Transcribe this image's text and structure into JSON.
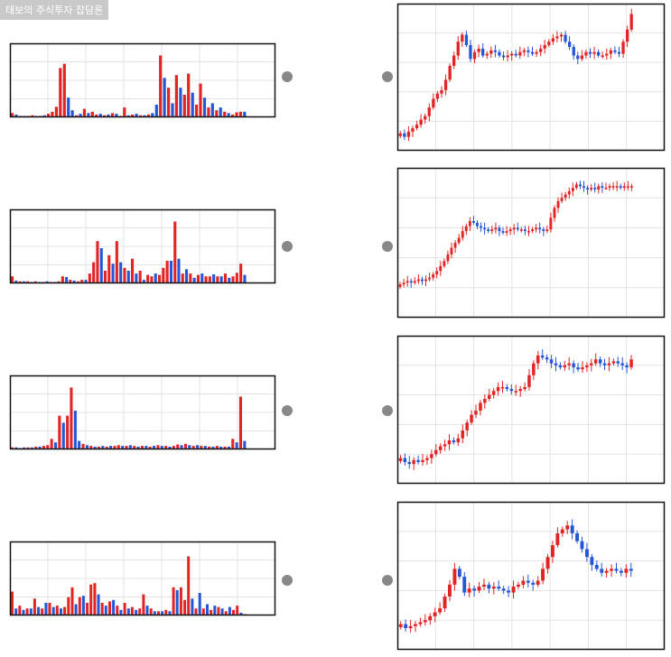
{
  "watermark_text": "태보의 주식투자 잡담론",
  "colors": {
    "up": "#e32424",
    "down": "#2456d6",
    "grid": "#e3e3e3",
    "frame": "#111111",
    "dot": "#888888"
  },
  "chart_data": [
    {
      "type": "bar",
      "label": "volume-1",
      "values": [
        6,
        4,
        2,
        2,
        2,
        3,
        2,
        2,
        3,
        5,
        8,
        15,
        70,
        76,
        28,
        10,
        3,
        5,
        12,
        6,
        8,
        4,
        5,
        3,
        4,
        6,
        5,
        2,
        14,
        3,
        4,
        5,
        3,
        3,
        4,
        6,
        18,
        88,
        56,
        42,
        20,
        60,
        42,
        32,
        62,
        35,
        18,
        48,
        28,
        14,
        20,
        10,
        14,
        8,
        6,
        4,
        7,
        8,
        8
      ],
      "ups": [
        1,
        0,
        1,
        0,
        1,
        1,
        0,
        1,
        0,
        1,
        1,
        1,
        1,
        1,
        0,
        0,
        1,
        0,
        1,
        0,
        1,
        1,
        0,
        1,
        0,
        1,
        0,
        1,
        1,
        0,
        1,
        0,
        1,
        0,
        1,
        0,
        0,
        1,
        0,
        1,
        0,
        1,
        0,
        1,
        1,
        0,
        1,
        1,
        0,
        1,
        0,
        1,
        0,
        1,
        0,
        1,
        1,
        1,
        0
      ],
      "ymax": 100
    },
    {
      "type": "bar",
      "label": "volume-2",
      "values": [
        10,
        4,
        3,
        3,
        3,
        2,
        3,
        2,
        2,
        3,
        2,
        2,
        3,
        10,
        9,
        5,
        4,
        3,
        5,
        5,
        14,
        30,
        60,
        50,
        18,
        40,
        28,
        60,
        30,
        22,
        18,
        35,
        14,
        18,
        5,
        12,
        10,
        14,
        12,
        22,
        32,
        32,
        88,
        35,
        14,
        20,
        14,
        8,
        12,
        14,
        10,
        10,
        13,
        10,
        10,
        14,
        8,
        10,
        15,
        28,
        12
      ],
      "ups": [
        1,
        0,
        1,
        0,
        1,
        0,
        1,
        0,
        1,
        0,
        1,
        0,
        1,
        1,
        0,
        1,
        0,
        1,
        1,
        0,
        1,
        1,
        1,
        0,
        1,
        1,
        0,
        1,
        0,
        1,
        0,
        1,
        0,
        1,
        0,
        1,
        1,
        0,
        1,
        1,
        1,
        0,
        1,
        0,
        1,
        0,
        1,
        0,
        1,
        0,
        1,
        1,
        0,
        1,
        0,
        1,
        0,
        1,
        1,
        1,
        0
      ],
      "ymax": 100
    },
    {
      "type": "bar",
      "label": "volume-3",
      "values": [
        3,
        3,
        2,
        3,
        3,
        3,
        4,
        4,
        5,
        6,
        15,
        10,
        48,
        38,
        48,
        88,
        55,
        12,
        8,
        6,
        5,
        4,
        4,
        5,
        4,
        5,
        5,
        6,
        5,
        5,
        6,
        5,
        4,
        5,
        5,
        4,
        5,
        6,
        5,
        5,
        4,
        5,
        7,
        6,
        8,
        6,
        5,
        6,
        5,
        5,
        4,
        4,
        5,
        4,
        4,
        4,
        15,
        10,
        75,
        12
      ],
      "ups": [
        1,
        0,
        1,
        0,
        1,
        0,
        1,
        0,
        1,
        1,
        1,
        0,
        1,
        0,
        1,
        1,
        0,
        0,
        1,
        0,
        1,
        0,
        1,
        0,
        1,
        0,
        1,
        1,
        0,
        1,
        0,
        1,
        0,
        1,
        0,
        1,
        0,
        1,
        0,
        1,
        0,
        1,
        1,
        0,
        1,
        0,
        1,
        0,
        1,
        0,
        1,
        0,
        1,
        0,
        1,
        0,
        1,
        0,
        1,
        0
      ],
      "ymax": 100
    },
    {
      "type": "bar",
      "label": "volume-4",
      "values": [
        34,
        10,
        14,
        8,
        10,
        10,
        24,
        12,
        10,
        18,
        18,
        12,
        14,
        10,
        12,
        26,
        40,
        16,
        26,
        28,
        18,
        44,
        46,
        30,
        18,
        14,
        20,
        22,
        14,
        8,
        18,
        10,
        12,
        8,
        10,
        30,
        14,
        10,
        6,
        6,
        6,
        8,
        6,
        40,
        36,
        40,
        22,
        84,
        24,
        10,
        32,
        10,
        16,
        8,
        14,
        12,
        10,
        6,
        12,
        8,
        14,
        4,
        2
      ],
      "ups": [
        1,
        0,
        1,
        0,
        1,
        0,
        1,
        0,
        1,
        0,
        1,
        0,
        1,
        0,
        1,
        1,
        1,
        0,
        1,
        0,
        1,
        1,
        1,
        0,
        1,
        0,
        1,
        0,
        1,
        0,
        1,
        0,
        1,
        0,
        1,
        1,
        0,
        1,
        0,
        1,
        0,
        1,
        0,
        1,
        0,
        1,
        1,
        1,
        0,
        1,
        0,
        1,
        0,
        1,
        0,
        1,
        0,
        1,
        0,
        1,
        1,
        0,
        1
      ],
      "ymax": 100
    },
    {
      "type": "candlestick",
      "label": "price-1",
      "closes": [
        35,
        33,
        36,
        38,
        40,
        43,
        45,
        50,
        55,
        58,
        60,
        66,
        74,
        80,
        88,
        92,
        86,
        78,
        82,
        84,
        80,
        81,
        83,
        82,
        80,
        79,
        80,
        81,
        80,
        82,
        83,
        82,
        81,
        82,
        84,
        86,
        88,
        90,
        91,
        92,
        88,
        85,
        80,
        78,
        80,
        82,
        81,
        82,
        80,
        80,
        81,
        83,
        82,
        81,
        88,
        95,
        104
      ],
      "ymin": 25,
      "ymax": 110
    },
    {
      "type": "candlestick",
      "label": "price-2",
      "closes": [
        30,
        31,
        32,
        31,
        32,
        33,
        32,
        33,
        34,
        36,
        38,
        41,
        44,
        48,
        52,
        55,
        58,
        62,
        65,
        68,
        67,
        65,
        64,
        63,
        62,
        63,
        64,
        62,
        61,
        62,
        63,
        64,
        63,
        63,
        62,
        62,
        63,
        64,
        63,
        62,
        63,
        70,
        76,
        80,
        82,
        84,
        86,
        88,
        90,
        89,
        88,
        87,
        88,
        87,
        89,
        88,
        88,
        89,
        89,
        89,
        88,
        89,
        89,
        89
      ],
      "ymin": 10,
      "ymax": 100
    },
    {
      "type": "candlestick",
      "label": "price-3",
      "closes": [
        38,
        36,
        35,
        37,
        36,
        37,
        38,
        40,
        42,
        44,
        45,
        47,
        46,
        48,
        52,
        56,
        60,
        62,
        66,
        68,
        70,
        72,
        74,
        74,
        73,
        72,
        72,
        73,
        74,
        80,
        86,
        90,
        89,
        88,
        86,
        85,
        84,
        85,
        86,
        84,
        83,
        84,
        85,
        86,
        88,
        86,
        85,
        86,
        87,
        86,
        85,
        84,
        88
      ],
      "ymin": 25,
      "ymax": 100
    },
    {
      "type": "candlestick",
      "label": "price-4",
      "closes": [
        38,
        36,
        37,
        38,
        39,
        40,
        42,
        44,
        46,
        52,
        58,
        66,
        62,
        54,
        56,
        55,
        57,
        58,
        56,
        57,
        56,
        55,
        54,
        57,
        58,
        60,
        59,
        58,
        60,
        66,
        72,
        78,
        84,
        86,
        88,
        84,
        80,
        76,
        72,
        68,
        66,
        64,
        65,
        66,
        65,
        64,
        66,
        65
      ],
      "ymin": 25,
      "ymax": 100
    }
  ]
}
